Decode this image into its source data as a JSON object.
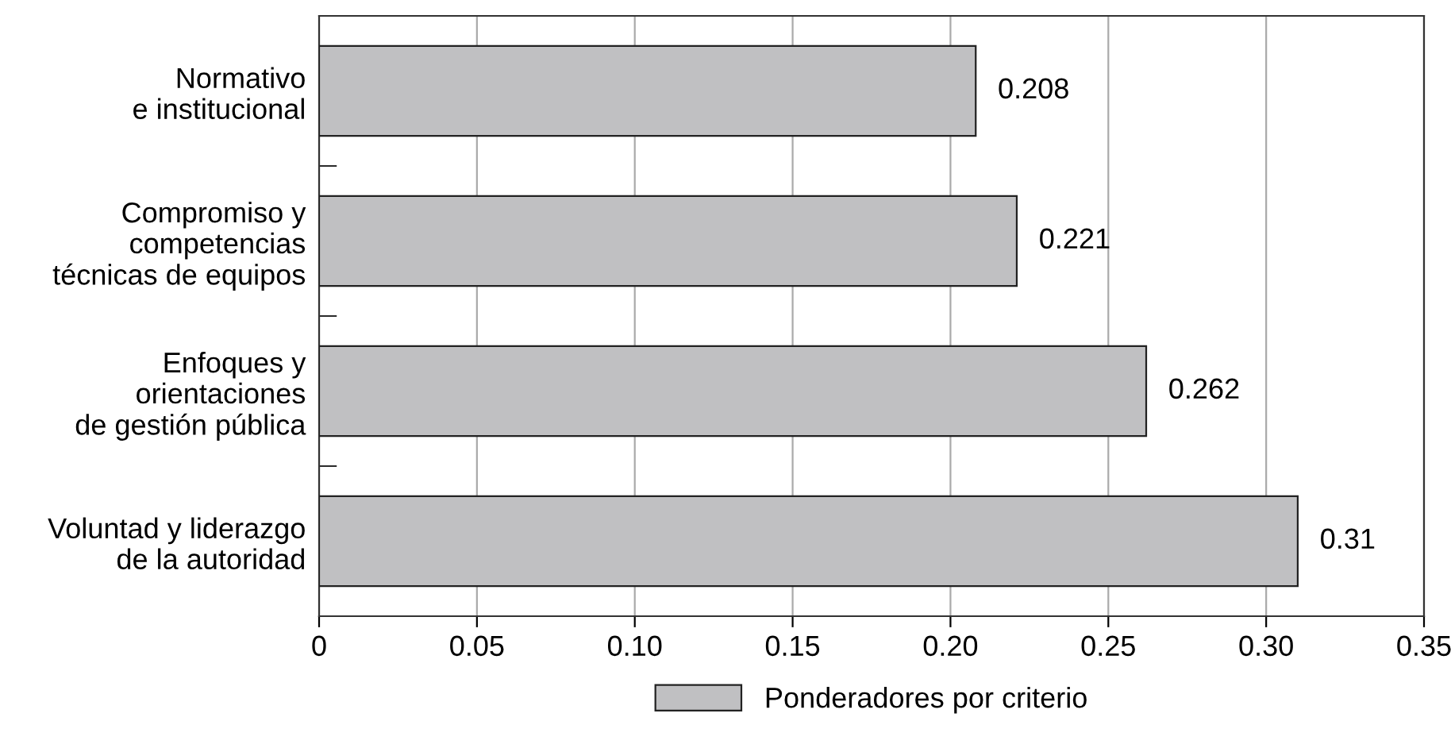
{
  "chart_data": {
    "type": "bar",
    "orientation": "horizontal",
    "categories": [
      "Normativo\ne institucional",
      "Compromiso y\ncompetencias\ntécnicas de equipos",
      "Enfoques y\norientaciones\nde gestión pública",
      "Voluntad y liderazgo\nde la autoridad"
    ],
    "series": [
      {
        "name": "Ponderadores por criterio",
        "color": "#c0c0c2",
        "values": [
          0.208,
          0.221,
          0.262,
          0.31
        ]
      }
    ],
    "data_labels": true,
    "xlim": [
      0,
      0.35
    ],
    "xticks": [
      0,
      0.05,
      {
        "value": 0.1,
        "label": "0.10"
      },
      0.15,
      {
        "value": 0.2,
        "label": "0.20"
      },
      0.25,
      {
        "value": 0.3,
        "label": "0.30"
      },
      0.35
    ],
    "grid": "x",
    "legend": "bottom"
  }
}
